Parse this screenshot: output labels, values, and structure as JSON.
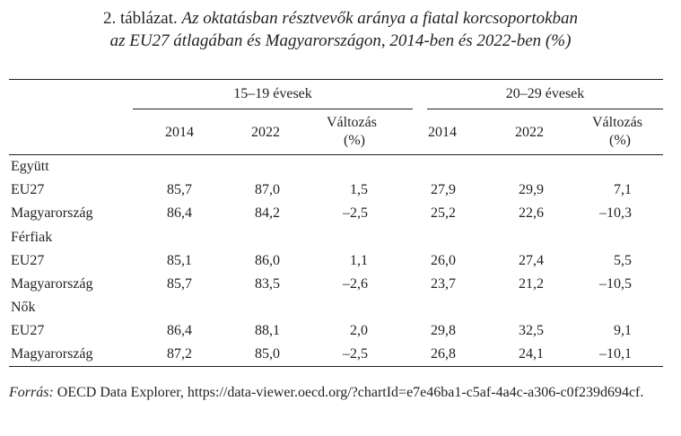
{
  "title": {
    "lead": "2. táblázat.",
    "line1": "Az oktatásban résztvevők aránya a fiatal korcsoportokban",
    "line2": "az EU27 átlagában és Magyarországon, 2014-ben és 2022-ben (%)"
  },
  "header": {
    "group_a": "15–19 évesek",
    "group_b": "20–29 évesek",
    "y2014": "2014",
    "y2022": "2022",
    "change_l1": "Változás",
    "change_l2": "(%)"
  },
  "sections": [
    {
      "label": "Együtt",
      "rows": [
        {
          "label": "EU27",
          "values": [
            "85,7",
            "87,0",
            "1,5",
            "27,9",
            "29,9",
            "7,1"
          ]
        },
        {
          "label": "Magyarország",
          "values": [
            "86,4",
            "84,2",
            "–2,5",
            "25,2",
            "22,6",
            "–10,3"
          ]
        }
      ]
    },
    {
      "label": "Férfiak",
      "rows": [
        {
          "label": "EU27",
          "values": [
            "85,1",
            "86,0",
            "1,1",
            "26,0",
            "27,4",
            "5,5"
          ]
        },
        {
          "label": "Magyarország",
          "values": [
            "85,7",
            "83,5",
            "–2,6",
            "23,7",
            "21,2",
            "–10,5"
          ]
        }
      ]
    },
    {
      "label": "Nők",
      "rows": [
        {
          "label": "EU27",
          "values": [
            "86,4",
            "88,1",
            "2,0",
            "29,8",
            "32,5",
            "9,1"
          ]
        },
        {
          "label": "Magyarország",
          "values": [
            "87,2",
            "85,0",
            "–2,5",
            "26,8",
            "24,1",
            "–10,1"
          ]
        }
      ]
    }
  ],
  "source": {
    "label": "Forrás:",
    "text": "OECD Data Explorer, https://data-viewer.oecd.org/?chartId=e7e46ba1-c5af-4a4c-a306-c0f239d694cf."
  }
}
